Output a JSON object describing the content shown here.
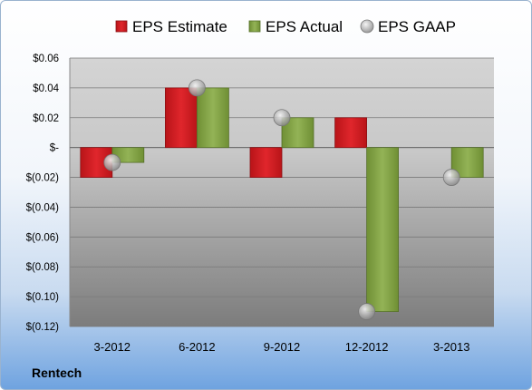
{
  "company": "Rentech",
  "colors": {
    "estimate": "#d9262c",
    "actual": "#8aab4a",
    "gaap": "#b0b0b0"
  },
  "chart_data": {
    "type": "bar",
    "title": "",
    "xlabel": "",
    "ylabel": "",
    "categories": [
      "3-2012",
      "6-2012",
      "9-2012",
      "12-2012",
      "3-2013"
    ],
    "series": [
      {
        "name": "EPS Estimate",
        "kind": "bar",
        "values": [
          -0.02,
          0.04,
          -0.02,
          0.02,
          null
        ]
      },
      {
        "name": "EPS Actual",
        "kind": "bar",
        "values": [
          -0.01,
          0.04,
          0.02,
          -0.11,
          -0.02
        ]
      },
      {
        "name": "EPS GAAP",
        "kind": "marker",
        "values": [
          -0.01,
          0.04,
          0.02,
          -0.11,
          -0.02
        ]
      }
    ],
    "ylim": [
      -0.12,
      0.06
    ],
    "yticks": [
      0.06,
      0.04,
      0.02,
      0,
      -0.02,
      -0.04,
      -0.06,
      -0.08,
      -0.1,
      -0.12
    ],
    "ytick_labels": [
      "$0.06",
      "$0.04",
      "$0.02",
      "$-",
      "$(0.02)",
      "$(0.04)",
      "$(0.06)",
      "$(0.08)",
      "$(0.10)",
      "$(0.12)"
    ],
    "grid": true,
    "legend_position": "top"
  }
}
